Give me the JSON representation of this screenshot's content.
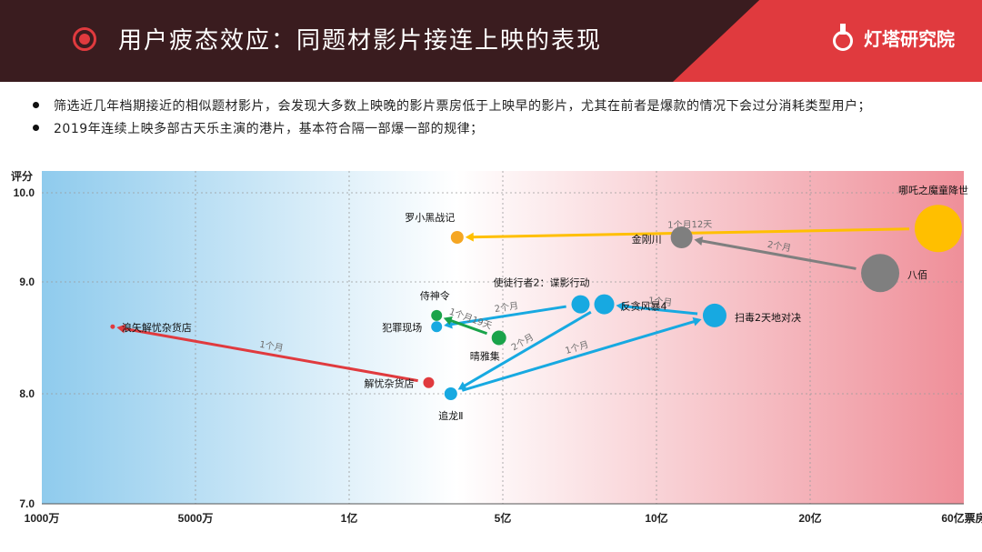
{
  "header": {
    "title": "用户疲态效应：同题材影片接连上映的表现",
    "brand": "灯塔研究院",
    "colors": {
      "dark": "#3a1c1f",
      "accent": "#e03a3e"
    }
  },
  "bullets": [
    "筛选近几年档期接近的相似题材影片，会发现大多数上映晚的影片票房低于上映早的影片，尤其在前者是爆款的情况下会过分消耗类型用户；",
    "2019年连续上映多部古天乐主演的港片，基本符合隔一部爆一部的规律；"
  ],
  "chart_data": {
    "type": "scatter",
    "ylabel": "评分",
    "xlabel": "票房",
    "x_scale": "log",
    "x_ticks": [
      {
        "value": 0.1,
        "label": "1000万"
      },
      {
        "value": 0.5,
        "label": "5000万"
      },
      {
        "value": 1,
        "label": "1亿"
      },
      {
        "value": 5,
        "label": "5亿"
      },
      {
        "value": 10,
        "label": "10亿"
      },
      {
        "value": 20,
        "label": "20亿"
      },
      {
        "value": 60,
        "label": "60亿票房"
      }
    ],
    "y_ticks": [
      {
        "value": 10,
        "label": "10.0"
      },
      {
        "value": 9,
        "label": "9.0"
      },
      {
        "value": 8,
        "label": "8.0"
      },
      {
        "value": 7,
        "label": "7.0"
      }
    ],
    "ylim": [
      7,
      10.2
    ],
    "grid": true,
    "points": [
      {
        "name": "哪吒之魔童降世",
        "x": 50,
        "y": 9.6,
        "size": 26,
        "color": "#ffbf00"
      },
      {
        "name": "罗小黑战记",
        "x": 3.1,
        "y": 9.5,
        "size": 7,
        "color": "#f5a623"
      },
      {
        "name": "八佰",
        "x": 33,
        "y": 9.1,
        "size": 21,
        "color": "#7f7f7f"
      },
      {
        "name": "金刚川",
        "x": 11.2,
        "y": 9.5,
        "size": 12,
        "color": "#7f7f7f"
      },
      {
        "name": "扫毒2天地对决",
        "x": 13,
        "y": 8.7,
        "size": 13,
        "color": "#17a9e1"
      },
      {
        "name": "反贪风暴4",
        "x": 7.9,
        "y": 8.8,
        "size": 11,
        "color": "#17a9e1"
      },
      {
        "name": "使徒行者2：谍影行动",
        "x": 7.1,
        "y": 8.8,
        "size": 10,
        "color": "#17a9e1"
      },
      {
        "name": "追龙Ⅱ",
        "x": 2.9,
        "y": 8.0,
        "size": 7,
        "color": "#17a9e1"
      },
      {
        "name": "侍神令",
        "x": 2.5,
        "y": 8.7,
        "size": 6,
        "color": "#1aa34a"
      },
      {
        "name": "晴雅集",
        "x": 4.8,
        "y": 8.5,
        "size": 8,
        "color": "#1aa34a"
      },
      {
        "name": "犯罪现场",
        "x": 2.5,
        "y": 8.6,
        "size": 6,
        "color": "#17a9e1"
      },
      {
        "name": "解忧杂货店",
        "x": 2.3,
        "y": 8.1,
        "size": 6,
        "color": "#e03a3e"
      },
      {
        "name": "浪矢解忧杂货店",
        "x": 0.21,
        "y": 8.6,
        "size": 2.5,
        "color": "#e03a3e"
      }
    ],
    "arrows": [
      {
        "label": "1个月12天",
        "from": "哪吒之魔童降世",
        "to": "罗小黑战记",
        "color": "#ffbf00"
      },
      {
        "label": "2个月",
        "from": "八佰",
        "to": "金刚川",
        "color": "#7f7f7f"
      },
      {
        "label": "1个月",
        "from": "扫毒2天地对决",
        "to": "反贪风暴4",
        "color": "#17a9e1"
      },
      {
        "label": "2个月",
        "from": "使徒行者2：谍影行动",
        "to": "犯罪现场",
        "color": "#17a9e1"
      },
      {
        "label": "2个月",
        "from": "反贪风暴4",
        "to": "追龙Ⅱ",
        "color": "#17a9e1"
      },
      {
        "label": "1个月",
        "from": "追龙Ⅱ",
        "to": "扫毒2天地对决",
        "color": "#17a9e1"
      },
      {
        "label": "1个月19天",
        "from": "晴雅集",
        "to": "侍神令",
        "color": "#1aa34a"
      },
      {
        "label": "1个月",
        "from": "解忧杂货店",
        "to": "浪矢解忧杂货店",
        "color": "#e03a3e"
      }
    ]
  }
}
